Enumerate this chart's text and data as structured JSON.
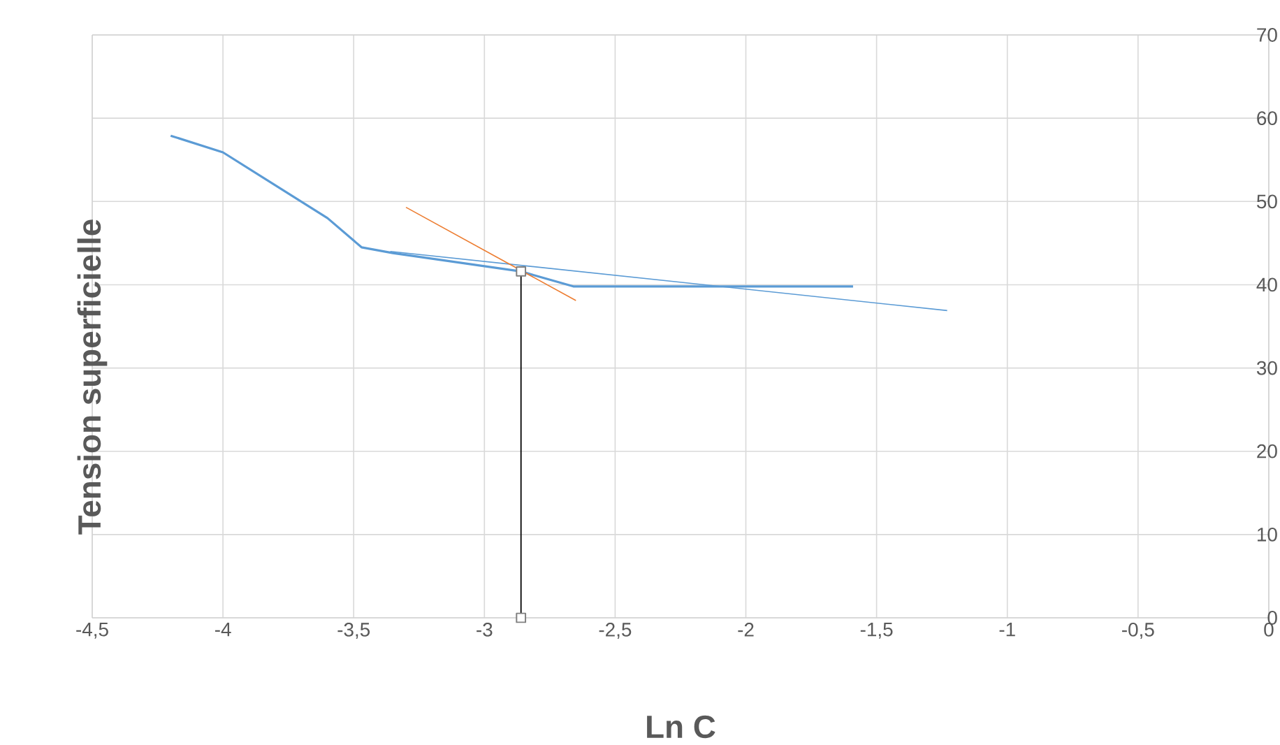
{
  "chart_data": {
    "type": "line",
    "xlabel": "Ln C",
    "ylabel": "Tension superficielle",
    "xlim": [
      -4.5,
      0
    ],
    "ylim": [
      0,
      70
    ],
    "xticks": [
      {
        "value": -4.5,
        "label": "-4,5"
      },
      -4,
      {
        "value": -3.5,
        "label": "-3,5"
      },
      -3,
      {
        "value": -2.5,
        "label": "-2,5"
      },
      -2,
      {
        "value": -1.5,
        "label": "-1,5"
      },
      -1,
      {
        "value": -0.5,
        "label": "-0,5"
      },
      0
    ],
    "yticks": [
      0,
      10,
      20,
      30,
      40,
      50,
      60,
      70
    ],
    "grid": true,
    "series": [
      {
        "color": "#5b9bd5",
        "x": [
          -4.2,
          -4.0,
          -3.6,
          -3.47,
          -3.35,
          -2.86,
          -2.66,
          -1.59
        ],
        "values": [
          57.9,
          55.9,
          48.0,
          44.5,
          43.8,
          41.6,
          39.8,
          39.8
        ]
      },
      {
        "color": "#5b9bd5",
        "x": [
          -3.36,
          -1.23
        ],
        "values": [
          44.0,
          36.9
        ]
      },
      {
        "color": "#ed7d31",
        "x": [
          -3.3,
          -2.65
        ],
        "values": [
          49.3,
          38.1
        ]
      },
      {
        "color": "#000000",
        "marker": "square",
        "x": [
          -2.86,
          -2.86
        ],
        "values": [
          0,
          41.6
        ]
      }
    ]
  }
}
